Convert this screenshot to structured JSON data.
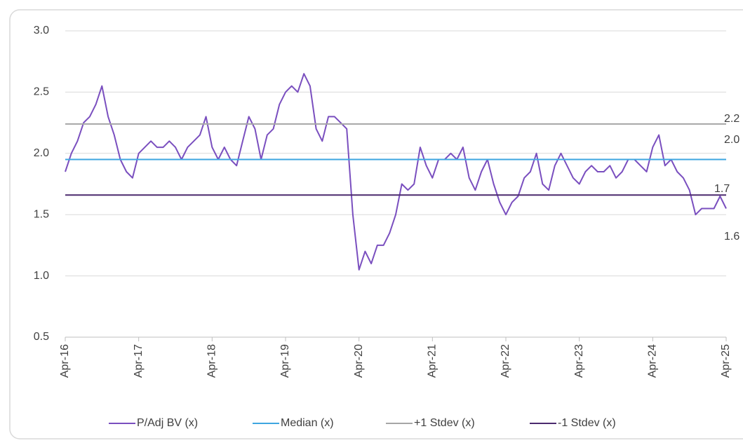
{
  "chart_data": {
    "type": "line",
    "x": [
      "2016-04",
      "2016-05",
      "2016-06",
      "2016-07",
      "2016-08",
      "2016-09",
      "2016-10",
      "2016-11",
      "2016-12",
      "2017-01",
      "2017-02",
      "2017-03",
      "2017-04",
      "2017-05",
      "2017-06",
      "2017-07",
      "2017-08",
      "2017-09",
      "2017-10",
      "2017-11",
      "2017-12",
      "2018-01",
      "2018-02",
      "2018-03",
      "2018-04",
      "2018-05",
      "2018-06",
      "2018-07",
      "2018-08",
      "2018-09",
      "2018-10",
      "2018-11",
      "2018-12",
      "2019-01",
      "2019-02",
      "2019-03",
      "2019-04",
      "2019-05",
      "2019-06",
      "2019-07",
      "2019-08",
      "2019-09",
      "2019-10",
      "2019-11",
      "2019-12",
      "2020-01",
      "2020-02",
      "2020-03",
      "2020-04",
      "2020-05",
      "2020-06",
      "2020-07",
      "2020-08",
      "2020-09",
      "2020-10",
      "2020-11",
      "2020-12",
      "2021-01",
      "2021-02",
      "2021-03",
      "2021-04",
      "2021-05",
      "2021-06",
      "2021-07",
      "2021-08",
      "2021-09",
      "2021-10",
      "2021-11",
      "2021-12",
      "2022-01",
      "2022-02",
      "2022-03",
      "2022-04",
      "2022-05",
      "2022-06",
      "2022-07",
      "2022-08",
      "2022-09",
      "2022-10",
      "2022-11",
      "2022-12",
      "2023-01",
      "2023-02",
      "2023-03",
      "2023-04",
      "2023-05",
      "2023-06",
      "2023-07",
      "2023-08",
      "2023-09",
      "2023-10",
      "2023-11",
      "2023-12",
      "2024-01",
      "2024-02",
      "2024-03",
      "2024-04",
      "2024-05",
      "2024-06",
      "2024-07",
      "2024-08",
      "2024-09",
      "2024-10",
      "2024-11",
      "2024-12",
      "2025-01",
      "2025-02",
      "2025-03",
      "2025-04"
    ],
    "series": [
      {
        "name": "P/Adj BV (x)",
        "color": "#7a4fbf",
        "value_label": "1.6",
        "values": [
          1.85,
          2.0,
          2.1,
          2.25,
          2.3,
          2.4,
          2.55,
          2.3,
          2.15,
          1.95,
          1.85,
          1.8,
          2.0,
          2.05,
          2.1,
          2.05,
          2.05,
          2.1,
          2.05,
          1.95,
          2.05,
          2.1,
          2.15,
          2.3,
          2.05,
          1.95,
          2.05,
          1.95,
          1.9,
          2.1,
          2.3,
          2.2,
          1.95,
          2.15,
          2.2,
          2.4,
          2.5,
          2.55,
          2.5,
          2.65,
          2.55,
          2.2,
          2.1,
          2.3,
          2.3,
          2.25,
          2.2,
          1.5,
          1.05,
          1.2,
          1.1,
          1.25,
          1.25,
          1.35,
          1.5,
          1.75,
          1.7,
          1.75,
          2.05,
          1.9,
          1.8,
          1.95,
          1.95,
          2.0,
          1.95,
          2.05,
          1.8,
          1.7,
          1.85,
          1.95,
          1.75,
          1.6,
          1.5,
          1.6,
          1.65,
          1.8,
          1.85,
          2.0,
          1.75,
          1.7,
          1.9,
          2.0,
          1.9,
          1.8,
          1.75,
          1.85,
          1.9,
          1.85,
          1.85,
          1.9,
          1.8,
          1.85,
          1.95,
          1.95,
          1.9,
          1.85,
          2.05,
          2.15,
          1.9,
          1.95,
          1.85,
          1.8,
          1.7,
          1.5,
          1.55,
          1.55,
          1.55,
          1.65,
          1.55
        ]
      },
      {
        "name": "Median (x)",
        "color": "#3ea6e0",
        "value": 1.95,
        "value_label": "2.0"
      },
      {
        "name": "+1 Stdev (x)",
        "color": "#a6a6a6",
        "value": 2.24,
        "value_label": "2.2"
      },
      {
        "name": "-1 Stdev (x)",
        "color": "#4b2a6e",
        "value": 1.66,
        "value_label": "1.7"
      }
    ],
    "ylim": [
      0.5,
      3.0
    ],
    "yticks": [
      {
        "value": 0.5,
        "label": "0.5"
      },
      {
        "value": 1.0,
        "label": "1.0"
      },
      {
        "value": 1.5,
        "label": "1.5"
      },
      {
        "value": 2.0,
        "label": "2.0"
      },
      {
        "value": 2.5,
        "label": "2.5"
      },
      {
        "value": 3.0,
        "label": "3.0"
      }
    ],
    "xticks": [
      {
        "value": "2016-04",
        "label": "Apr-16"
      },
      {
        "value": "2017-04",
        "label": "Apr-17"
      },
      {
        "value": "2018-04",
        "label": "Apr-18"
      },
      {
        "value": "2019-04",
        "label": "Apr-19"
      },
      {
        "value": "2020-04",
        "label": "Apr-20"
      },
      {
        "value": "2021-04",
        "label": "Apr-21"
      },
      {
        "value": "2022-04",
        "label": "Apr-22"
      },
      {
        "value": "2023-04",
        "label": "Apr-23"
      },
      {
        "value": "2024-04",
        "label": "Apr-24"
      },
      {
        "value": "2025-04",
        "label": "Apr-25"
      }
    ],
    "grid": true,
    "legend": "bottom"
  }
}
